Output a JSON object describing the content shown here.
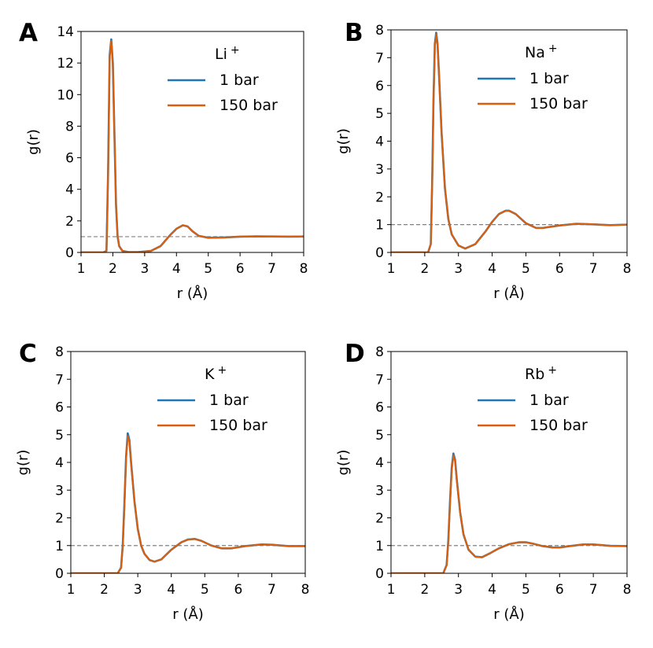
{
  "colors": {
    "series_1bar": "#1f77b4",
    "series_150bar": "#d95f0e",
    "reference": "#808080"
  },
  "chart_data": [
    {
      "type": "line",
      "panel": "A",
      "ion_label": "Li",
      "ion_charge": "+",
      "xlabel": "r (Å)",
      "ylabel": "g(r)",
      "xlim": [
        1,
        8
      ],
      "ylim": [
        0,
        14
      ],
      "xticks": [
        1,
        2,
        3,
        4,
        5,
        6,
        7,
        8
      ],
      "yticks": [
        0,
        2,
        4,
        6,
        8,
        10,
        12,
        14
      ],
      "reference_line": 1,
      "legend_position": "top-right",
      "series": [
        {
          "name": "1 bar",
          "color": "#1f77b4",
          "x": [
            1.0,
            1.7,
            1.8,
            1.85,
            1.9,
            1.95,
            2.0,
            2.05,
            2.1,
            2.15,
            2.2,
            2.3,
            2.5,
            2.8,
            3.2,
            3.5,
            3.8,
            4.0,
            4.2,
            4.35,
            4.5,
            4.7,
            5.0,
            5.5,
            6.0,
            6.5,
            7.0,
            7.5,
            8.0
          ],
          "y": [
            0,
            0,
            0.1,
            5.0,
            12.5,
            13.5,
            12.0,
            7.5,
            3.0,
            1.0,
            0.4,
            0.1,
            0.02,
            0.02,
            0.1,
            0.4,
            1.1,
            1.5,
            1.72,
            1.65,
            1.35,
            1.05,
            0.93,
            0.95,
            1.0,
            1.02,
            1.01,
            1.0,
            1.01
          ]
        },
        {
          "name": "150 bar",
          "color": "#d95f0e",
          "x": [
            1.0,
            1.7,
            1.8,
            1.85,
            1.9,
            1.95,
            2.0,
            2.05,
            2.1,
            2.15,
            2.2,
            2.3,
            2.5,
            2.8,
            3.2,
            3.5,
            3.8,
            4.0,
            4.2,
            4.35,
            4.5,
            4.7,
            5.0,
            5.5,
            6.0,
            6.5,
            7.0,
            7.5,
            8.0
          ],
          "y": [
            0,
            0,
            0.1,
            4.9,
            12.4,
            13.4,
            11.9,
            7.4,
            3.0,
            1.0,
            0.4,
            0.1,
            0.02,
            0.02,
            0.1,
            0.4,
            1.1,
            1.5,
            1.72,
            1.65,
            1.35,
            1.05,
            0.93,
            0.95,
            1.0,
            1.02,
            1.01,
            1.0,
            1.01
          ]
        }
      ]
    },
    {
      "type": "line",
      "panel": "B",
      "ion_label": "Na",
      "ion_charge": "+",
      "xlabel": "r (Å)",
      "ylabel": "g(r)",
      "xlim": [
        1,
        8
      ],
      "ylim": [
        0,
        8
      ],
      "xticks": [
        1,
        2,
        3,
        4,
        5,
        6,
        7,
        8
      ],
      "yticks": [
        0,
        1,
        2,
        3,
        4,
        5,
        6,
        7,
        8
      ],
      "reference_line": 1,
      "legend_position": "top-right",
      "series": [
        {
          "name": "1 bar",
          "color": "#1f77b4",
          "x": [
            1.0,
            2.1,
            2.18,
            2.22,
            2.26,
            2.3,
            2.34,
            2.38,
            2.42,
            2.5,
            2.6,
            2.7,
            2.8,
            3.0,
            3.2,
            3.5,
            3.8,
            4.0,
            4.2,
            4.4,
            4.5,
            4.7,
            5.0,
            5.3,
            5.5,
            6.0,
            6.5,
            7.0,
            7.5,
            8.0
          ],
          "y": [
            0,
            0,
            0.3,
            2.5,
            5.5,
            7.5,
            7.9,
            7.5,
            6.5,
            4.3,
            2.3,
            1.2,
            0.65,
            0.25,
            0.14,
            0.3,
            0.75,
            1.1,
            1.38,
            1.5,
            1.5,
            1.38,
            1.05,
            0.88,
            0.88,
            0.97,
            1.03,
            1.01,
            0.98,
            1.0
          ]
        },
        {
          "name": "150 bar",
          "color": "#d95f0e",
          "x": [
            1.0,
            2.1,
            2.18,
            2.22,
            2.26,
            2.3,
            2.34,
            2.38,
            2.42,
            2.5,
            2.6,
            2.7,
            2.8,
            3.0,
            3.2,
            3.5,
            3.8,
            4.0,
            4.2,
            4.4,
            4.5,
            4.7,
            5.0,
            5.3,
            5.5,
            6.0,
            6.5,
            7.0,
            7.5,
            8.0
          ],
          "y": [
            0,
            0,
            0.3,
            2.4,
            5.4,
            7.4,
            7.85,
            7.45,
            6.45,
            4.3,
            2.3,
            1.2,
            0.65,
            0.25,
            0.14,
            0.3,
            0.75,
            1.1,
            1.38,
            1.5,
            1.5,
            1.38,
            1.05,
            0.88,
            0.88,
            0.97,
            1.03,
            1.01,
            0.98,
            1.0
          ]
        }
      ]
    },
    {
      "type": "line",
      "panel": "C",
      "ion_label": "K",
      "ion_charge": "+",
      "xlabel": "r (Å)",
      "ylabel": "g(r)",
      "xlim": [
        1,
        8
      ],
      "ylim": [
        0,
        8
      ],
      "xticks": [
        1,
        2,
        3,
        4,
        5,
        6,
        7,
        8
      ],
      "yticks": [
        0,
        1,
        2,
        3,
        4,
        5,
        6,
        7,
        8
      ],
      "reference_line": 1,
      "legend_position": "top-right",
      "series": [
        {
          "name": "1 bar",
          "color": "#1f77b4",
          "x": [
            1.0,
            2.4,
            2.5,
            2.55,
            2.6,
            2.65,
            2.7,
            2.75,
            2.8,
            2.9,
            3.0,
            3.1,
            3.2,
            3.35,
            3.5,
            3.7,
            4.0,
            4.3,
            4.5,
            4.7,
            4.9,
            5.2,
            5.5,
            5.8,
            6.2,
            6.7,
            7.0,
            7.5,
            8.0
          ],
          "y": [
            0,
            0,
            0.2,
            1.0,
            2.5,
            4.2,
            5.05,
            4.8,
            4.0,
            2.6,
            1.6,
            1.0,
            0.7,
            0.48,
            0.42,
            0.5,
            0.85,
            1.12,
            1.22,
            1.24,
            1.17,
            1.0,
            0.9,
            0.9,
            0.98,
            1.04,
            1.03,
            0.98,
            0.98
          ]
        },
        {
          "name": "150 bar",
          "color": "#d95f0e",
          "x": [
            1.0,
            2.4,
            2.5,
            2.55,
            2.6,
            2.65,
            2.7,
            2.75,
            2.8,
            2.9,
            3.0,
            3.1,
            3.2,
            3.35,
            3.5,
            3.7,
            4.0,
            4.3,
            4.5,
            4.7,
            4.9,
            5.2,
            5.5,
            5.8,
            6.2,
            6.7,
            7.0,
            7.5,
            8.0
          ],
          "y": [
            0,
            0,
            0.2,
            0.95,
            2.4,
            4.1,
            4.95,
            4.75,
            3.95,
            2.6,
            1.6,
            1.0,
            0.7,
            0.48,
            0.42,
            0.5,
            0.85,
            1.12,
            1.22,
            1.24,
            1.17,
            1.0,
            0.9,
            0.9,
            0.98,
            1.04,
            1.03,
            0.98,
            0.98
          ]
        }
      ]
    },
    {
      "type": "line",
      "panel": "D",
      "ion_label": "Rb",
      "ion_charge": "+",
      "xlabel": "r (Å)",
      "ylabel": "g(r)",
      "xlim": [
        1,
        8
      ],
      "ylim": [
        0,
        8
      ],
      "xticks": [
        1,
        2,
        3,
        4,
        5,
        6,
        7,
        8
      ],
      "yticks": [
        0,
        1,
        2,
        3,
        4,
        5,
        6,
        7,
        8
      ],
      "reference_line": 1,
      "legend_position": "top-right",
      "series": [
        {
          "name": "1 bar",
          "color": "#1f77b4",
          "x": [
            1.0,
            2.55,
            2.65,
            2.7,
            2.75,
            2.8,
            2.85,
            2.9,
            2.95,
            3.05,
            3.15,
            3.3,
            3.5,
            3.7,
            3.9,
            4.2,
            4.5,
            4.8,
            5.0,
            5.2,
            5.5,
            5.8,
            6.0,
            6.3,
            6.7,
            7.0,
            7.5,
            8.0
          ],
          "y": [
            0,
            0,
            0.3,
            1.2,
            2.6,
            3.8,
            4.32,
            4.1,
            3.4,
            2.2,
            1.4,
            0.85,
            0.6,
            0.58,
            0.7,
            0.9,
            1.05,
            1.12,
            1.12,
            1.07,
            0.98,
            0.93,
            0.93,
            0.98,
            1.04,
            1.04,
            0.99,
            0.98
          ]
        },
        {
          "name": "150 bar",
          "color": "#d95f0e",
          "x": [
            1.0,
            2.55,
            2.65,
            2.7,
            2.75,
            2.8,
            2.85,
            2.9,
            2.95,
            3.05,
            3.15,
            3.3,
            3.5,
            3.7,
            3.9,
            4.2,
            4.5,
            4.8,
            5.0,
            5.2,
            5.5,
            5.8,
            6.0,
            6.3,
            6.7,
            7.0,
            7.5,
            8.0
          ],
          "y": [
            0,
            0,
            0.3,
            1.15,
            2.5,
            3.7,
            4.25,
            4.05,
            3.35,
            2.2,
            1.4,
            0.85,
            0.6,
            0.58,
            0.7,
            0.9,
            1.05,
            1.12,
            1.12,
            1.07,
            0.98,
            0.93,
            0.93,
            0.98,
            1.04,
            1.04,
            0.99,
            0.98
          ]
        }
      ]
    }
  ]
}
